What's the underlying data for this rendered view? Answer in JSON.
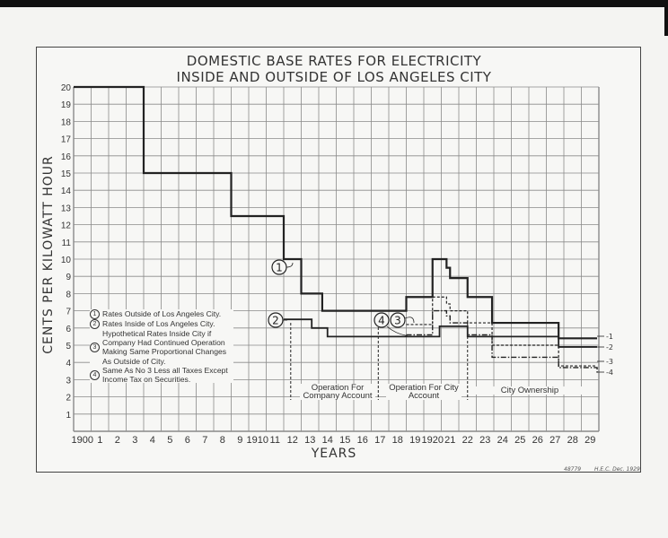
{
  "chart_data": {
    "type": "line",
    "title": [
      "DOMESTIC BASE RATES FOR ELECTRICITY",
      "INSIDE AND OUTSIDE OF LOS ANGELES CITY"
    ],
    "xlabel": "YEARS",
    "ylabel": "CENTS PER KILOWATT HOUR",
    "xlim": [
      1900,
      1930
    ],
    "ylim": [
      0,
      20
    ],
    "grid": true,
    "step": true,
    "x_tick_labels": [
      "1900",
      "1",
      "2",
      "3",
      "4",
      "5",
      "6",
      "7",
      "8",
      "9",
      "1910",
      "11",
      "12",
      "13",
      "14",
      "15",
      "16",
      "17",
      "18",
      "19",
      "1920",
      "21",
      "22",
      "23",
      "24",
      "25",
      "26",
      "27",
      "28",
      "29"
    ],
    "y_tick_labels": [
      "1",
      "2",
      "3",
      "4",
      "5",
      "6",
      "7",
      "8",
      "9",
      "10",
      "11",
      "12",
      "13",
      "14",
      "15",
      "16",
      "17",
      "18",
      "19",
      "20"
    ],
    "series": [
      {
        "name": "1",
        "style": "solid-thick",
        "points": [
          [
            1900,
            20
          ],
          [
            1904,
            15
          ],
          [
            1909,
            12.5
          ],
          [
            1912,
            10
          ],
          [
            1913,
            8
          ],
          [
            1914.2,
            7
          ],
          [
            1919,
            7.8
          ],
          [
            1920.5,
            10
          ],
          [
            1921.3,
            9.5
          ],
          [
            1921.5,
            8.9
          ],
          [
            1922.5,
            7.8
          ],
          [
            1923.9,
            6.3
          ],
          [
            1927.7,
            5.4
          ],
          [
            1929.9,
            5.4
          ]
        ]
      },
      {
        "name": "2",
        "style": "solid",
        "points": [
          [
            1912,
            6.5
          ],
          [
            1913.6,
            6.0
          ],
          [
            1914.5,
            5.5
          ],
          [
            1920.9,
            6.1
          ],
          [
            1922.5,
            5.5
          ],
          [
            1927.7,
            4.9
          ],
          [
            1929.9,
            4.9
          ]
        ]
      },
      {
        "name": "3",
        "style": "dashed",
        "points": [
          [
            1919,
            6.2
          ],
          [
            1920.5,
            7.8
          ],
          [
            1921.3,
            7.4
          ],
          [
            1921.5,
            7.0
          ],
          [
            1922.5,
            6.3
          ],
          [
            1923.9,
            5.0
          ],
          [
            1927.7,
            3.8
          ],
          [
            1929.9,
            3.8
          ]
        ]
      },
      {
        "name": "4",
        "style": "dash-dot",
        "points": [
          [
            1919,
            5.6
          ],
          [
            1920.5,
            7.0
          ],
          [
            1921.3,
            6.7
          ],
          [
            1921.5,
            6.3
          ],
          [
            1922.5,
            5.6
          ],
          [
            1923.9,
            4.3
          ],
          [
            1927.7,
            3.7
          ],
          [
            1929.9,
            3.4
          ]
        ]
      }
    ],
    "legend": [
      {
        "num": "1",
        "text": "Rates Outside of Los Angeles City."
      },
      {
        "num": "2",
        "text": "Rates Inside of Los Angeles City."
      },
      {
        "num": "3",
        "text": "Hypothetical Rates Inside City if Company Had Continued Operation Making Same Proportional Changes As Outside of City."
      },
      {
        "num": "4",
        "text": "Same As No 3 Less all Taxes Except Income Tax on Securities."
      }
    ],
    "periods": [
      {
        "label": "Operation For Company Account",
        "from": 1912.4,
        "to": 1917.4
      },
      {
        "label": "Operation For City Account",
        "from": 1917.4,
        "to": 1922.5
      },
      {
        "label": "City Ownership",
        "from": 1922.5,
        "to": 1930
      }
    ],
    "footer": [
      "48779",
      "H.E.C. Dec. 1929"
    ],
    "colors": {
      "ink": "#222222",
      "grid": "#8a8a8a",
      "paper": "#f7f7f5"
    }
  }
}
